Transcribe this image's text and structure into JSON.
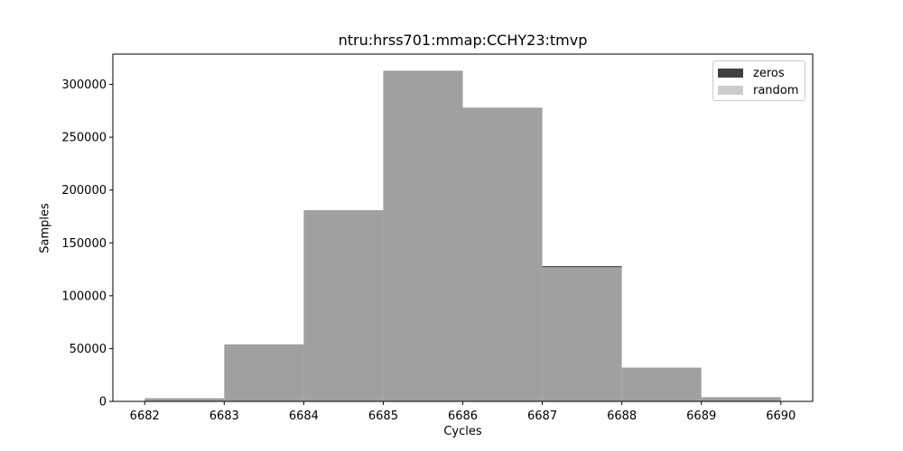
{
  "chart_data": {
    "type": "bar",
    "title": "ntru:hrss701:mmap:CCHY23:tmvp",
    "xlabel": "Cycles",
    "ylabel": "Samples",
    "bin_edges": [
      6682,
      6683,
      6684,
      6685,
      6686,
      6687,
      6688,
      6689,
      6690
    ],
    "series": [
      {
        "name": "zeros",
        "color": "#404040",
        "values": [
          3000,
          54000,
          181000,
          313000,
          278000,
          128000,
          32000,
          4000
        ]
      },
      {
        "name": "random",
        "color": "#cccccc",
        "values": [
          3000,
          54000,
          181000,
          313000,
          278000,
          127000,
          32000,
          4000
        ]
      }
    ],
    "overlap_color": "#a0a0a0",
    "xticks": [
      "6682",
      "6683",
      "6684",
      "6685",
      "6686",
      "6687",
      "6688",
      "6689",
      "6690"
    ],
    "yticks": [
      "0",
      "50000",
      "100000",
      "150000",
      "200000",
      "250000",
      "300000"
    ],
    "xlim": [
      6681.6,
      6690.4
    ],
    "ylim": [
      0,
      328650
    ],
    "legend_position": "top-right",
    "grid": false
  }
}
